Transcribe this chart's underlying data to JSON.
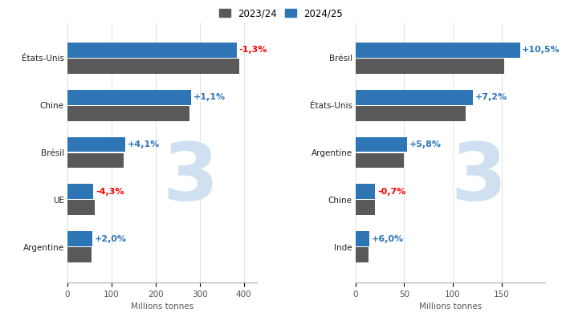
{
  "corn": {
    "categories": [
      "États-Unis",
      "Chine",
      "Brésil",
      "UE",
      "Argentine"
    ],
    "val_2023": [
      389,
      277,
      127,
      62,
      55
    ],
    "val_2024": [
      384,
      280,
      132,
      59,
      56
    ],
    "pct_changes": [
      "-1,3%",
      "+1,1%",
      "+4,1%",
      "-4,3%",
      "+2,0%"
    ],
    "pct_colors": [
      "red",
      "#2e75b6",
      "#2e75b6",
      "red",
      "#2e75b6"
    ],
    "xlim": [
      0,
      430
    ],
    "xticks": [
      0,
      100,
      200,
      300,
      400
    ],
    "xlabel": "Millions tonnes"
  },
  "soy": {
    "categories": [
      "Brésil",
      "États-Unis",
      "Argentine",
      "Chine",
      "Inde"
    ],
    "val_2023": [
      153,
      113,
      50,
      20,
      13
    ],
    "val_2024": [
      169,
      121,
      53,
      20,
      14
    ],
    "pct_changes": [
      "+10,5%",
      "+7,2%",
      "+5,8%",
      "-0,7%",
      "+6,0%"
    ],
    "pct_colors": [
      "#2e75b6",
      "#2e75b6",
      "#2e75b6",
      "red",
      "#2e75b6"
    ],
    "xlim": [
      0,
      195
    ],
    "xticks": [
      0,
      50,
      100,
      150
    ],
    "xlabel": "Millions tonnes"
  },
  "color_2023": "#595959",
  "color_2024": "#2e75b6",
  "legend_2023": "2023/24",
  "legend_2024": "2024/25",
  "bar_height": 0.32,
  "bg_color": "#ffffff",
  "watermark_color": "#cfe0f0",
  "watermark_text": "3",
  "label_fontsize": 7.5,
  "pct_fontsize": 8.0,
  "tick_fontsize": 7.5,
  "xlabel_fontsize": 7.5
}
